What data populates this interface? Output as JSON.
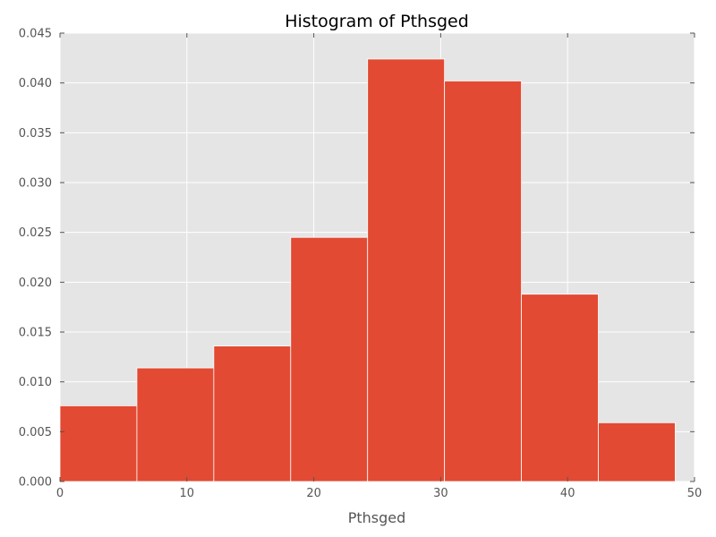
{
  "chart_data": {
    "type": "bar",
    "title": "Histogram of Pthsged",
    "xlabel": "Pthsged",
    "ylabel": "",
    "xlim": [
      0,
      50
    ],
    "ylim": [
      0,
      0.045
    ],
    "grid": true,
    "bin_edges": [
      0,
      6.06,
      12.12,
      18.18,
      24.24,
      30.3,
      36.36,
      42.42,
      48.48
    ],
    "values": [
      0.0076,
      0.0114,
      0.0136,
      0.0245,
      0.0424,
      0.0402,
      0.0188,
      0.0059
    ],
    "x_ticks": [
      {
        "value": 0,
        "label": "0"
      },
      {
        "value": 10,
        "label": "10"
      },
      {
        "value": 20,
        "label": "20"
      },
      {
        "value": 30,
        "label": "30"
      },
      {
        "value": 40,
        "label": "40"
      },
      {
        "value": 50,
        "label": "50"
      }
    ],
    "y_ticks": [
      {
        "value": 0,
        "label": "0.000"
      },
      {
        "value": 0.005,
        "label": "0.005"
      },
      {
        "value": 0.01,
        "label": "0.010"
      },
      {
        "value": 0.015,
        "label": "0.015"
      },
      {
        "value": 0.02,
        "label": "0.020"
      },
      {
        "value": 0.025,
        "label": "0.025"
      },
      {
        "value": 0.03,
        "label": "0.030"
      },
      {
        "value": 0.035,
        "label": "0.035"
      },
      {
        "value": 0.04,
        "label": "0.040"
      },
      {
        "value": 0.045,
        "label": "0.045"
      }
    ],
    "colors": {
      "bar": "#e24a33",
      "plot_background": "#e5e5e5",
      "grid": "#ffffff",
      "tick_text": "#555555"
    }
  }
}
